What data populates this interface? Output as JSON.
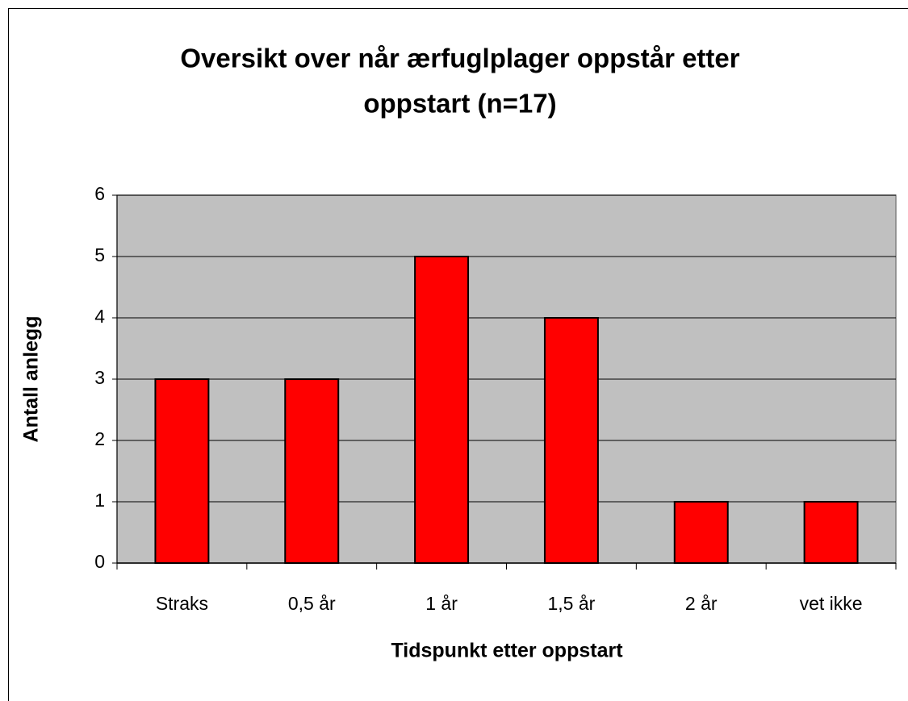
{
  "chart_data": {
    "type": "bar",
    "title": [
      "Oversikt over når ærfuglplager oppstår etter",
      "oppstart (n=17)"
    ],
    "x_label": "Tidspunkt etter oppstart",
    "y_label": "Antall anlegg",
    "categories": [
      "Straks",
      "0,5 år",
      "1 år",
      "1,5 år",
      "2 år",
      "vet ikke"
    ],
    "values": [
      3,
      3,
      5,
      4,
      1,
      1
    ],
    "color": "#ff0000",
    "plot_background": "#c0c0c0",
    "ylim": [
      0,
      6
    ],
    "yticks": [
      0,
      1,
      2,
      3,
      4,
      5,
      6
    ],
    "grid": true
  }
}
